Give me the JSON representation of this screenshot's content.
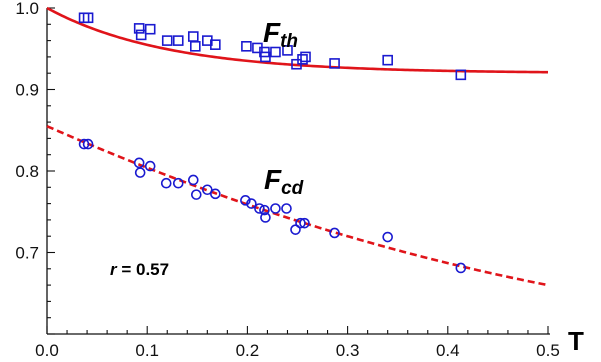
{
  "chart_data": {
    "type": "scatter",
    "xlabel": "T",
    "ylabel": "",
    "xlim": [
      0.0,
      0.5
    ],
    "ylim": [
      0.6,
      1.0
    ],
    "x_ticks": [
      "0.0",
      "0.1",
      "0.2",
      "0.3",
      "0.4",
      "0.5"
    ],
    "y_ticks": [
      "0.7",
      "0.8",
      "0.9",
      "1.0"
    ],
    "grid": false,
    "annotation": {
      "r_symbol": "r",
      "r_text": " = 0.57"
    },
    "series": [
      {
        "name": "F",
        "name_sub": "th",
        "marker": "square",
        "marker_color": "#1a1ad0",
        "x": [
          0.037,
          0.041,
          0.092,
          0.094,
          0.103,
          0.12,
          0.131,
          0.146,
          0.148,
          0.16,
          0.168,
          0.199,
          0.21,
          0.217,
          0.218,
          0.228,
          0.24,
          0.249,
          0.255,
          0.258,
          0.287,
          0.34,
          0.413
        ],
        "y": [
          0.988,
          0.988,
          0.975,
          0.967,
          0.974,
          0.96,
          0.96,
          0.965,
          0.953,
          0.96,
          0.955,
          0.953,
          0.951,
          0.946,
          0.94,
          0.946,
          0.948,
          0.931,
          0.937,
          0.94,
          0.932,
          0.936,
          0.918
        ]
      },
      {
        "name": "F",
        "name_sub": "cd",
        "marker": "circle",
        "marker_color": "#1a1ad0",
        "x": [
          0.037,
          0.041,
          0.092,
          0.093,
          0.103,
          0.119,
          0.131,
          0.146,
          0.149,
          0.16,
          0.168,
          0.198,
          0.204,
          0.212,
          0.217,
          0.218,
          0.228,
          0.239,
          0.248,
          0.253,
          0.257,
          0.287,
          0.34,
          0.413
        ],
        "y": [
          0.833,
          0.833,
          0.81,
          0.798,
          0.806,
          0.785,
          0.785,
          0.789,
          0.771,
          0.777,
          0.772,
          0.764,
          0.76,
          0.754,
          0.752,
          0.743,
          0.754,
          0.754,
          0.728,
          0.736,
          0.736,
          0.724,
          0.719,
          0.681
        ]
      }
    ],
    "fits": [
      {
        "style": "solid",
        "color": "#e0141a",
        "model": "y = 0.92 + 0.08*exp(-x/0.12)"
      },
      {
        "style": "dashed",
        "color": "#e0141a",
        "model": "y = 0.855 - 0.54*x + 0.30*x^2"
      }
    ]
  }
}
